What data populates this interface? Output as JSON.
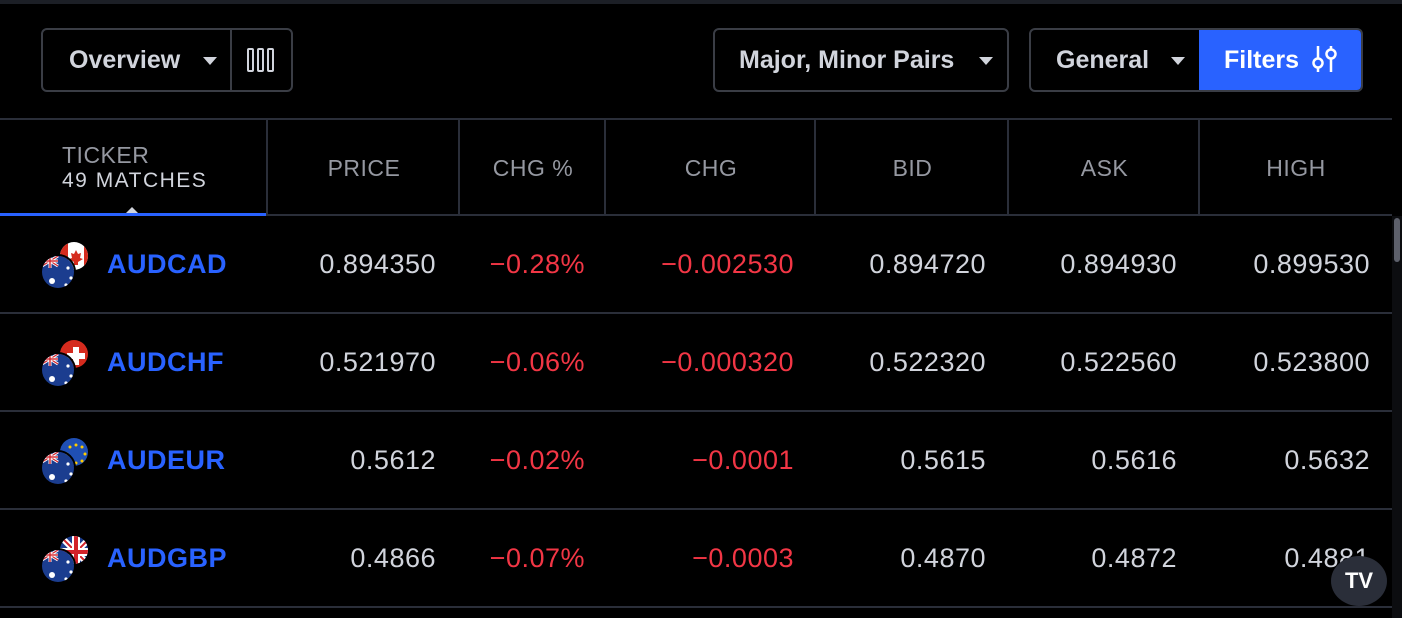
{
  "toolbar": {
    "view_label": "Overview",
    "market_label": "Major, Minor Pairs",
    "column_set_label": "General",
    "filters_label": "Filters"
  },
  "table": {
    "ticker_header": "TICKER",
    "matches_label": "49 MATCHES",
    "columns": [
      "PRICE",
      "CHG %",
      "CHG",
      "BID",
      "ASK",
      "HIGH"
    ],
    "rows": [
      {
        "symbol": "AUDCAD",
        "price": "0.894350",
        "chg_pct": "−0.28%",
        "chg": "−0.002530",
        "bid": "0.894720",
        "ask": "0.894930",
        "high": "0.899530",
        "quote_flag": "canada-flag-icon"
      },
      {
        "symbol": "AUDCHF",
        "price": "0.521970",
        "chg_pct": "−0.06%",
        "chg": "−0.000320",
        "bid": "0.522320",
        "ask": "0.522560",
        "high": "0.523800",
        "quote_flag": "switzerland-flag-icon"
      },
      {
        "symbol": "AUDEUR",
        "price": "0.5612",
        "chg_pct": "−0.02%",
        "chg": "−0.0001",
        "bid": "0.5615",
        "ask": "0.5616",
        "high": "0.5632",
        "quote_flag": "eu-flag-icon"
      },
      {
        "symbol": "AUDGBP",
        "price": "0.4866",
        "chg_pct": "−0.07%",
        "chg": "−0.0003",
        "bid": "0.4870",
        "ask": "0.4872",
        "high": "0.4881",
        "quote_flag": "uk-flag-icon"
      }
    ]
  },
  "brand": {
    "logo_text": "TV"
  },
  "colors": {
    "accent": "#2962ff",
    "negative": "#f23645",
    "background": "#000000",
    "border": "#2a2e39"
  }
}
